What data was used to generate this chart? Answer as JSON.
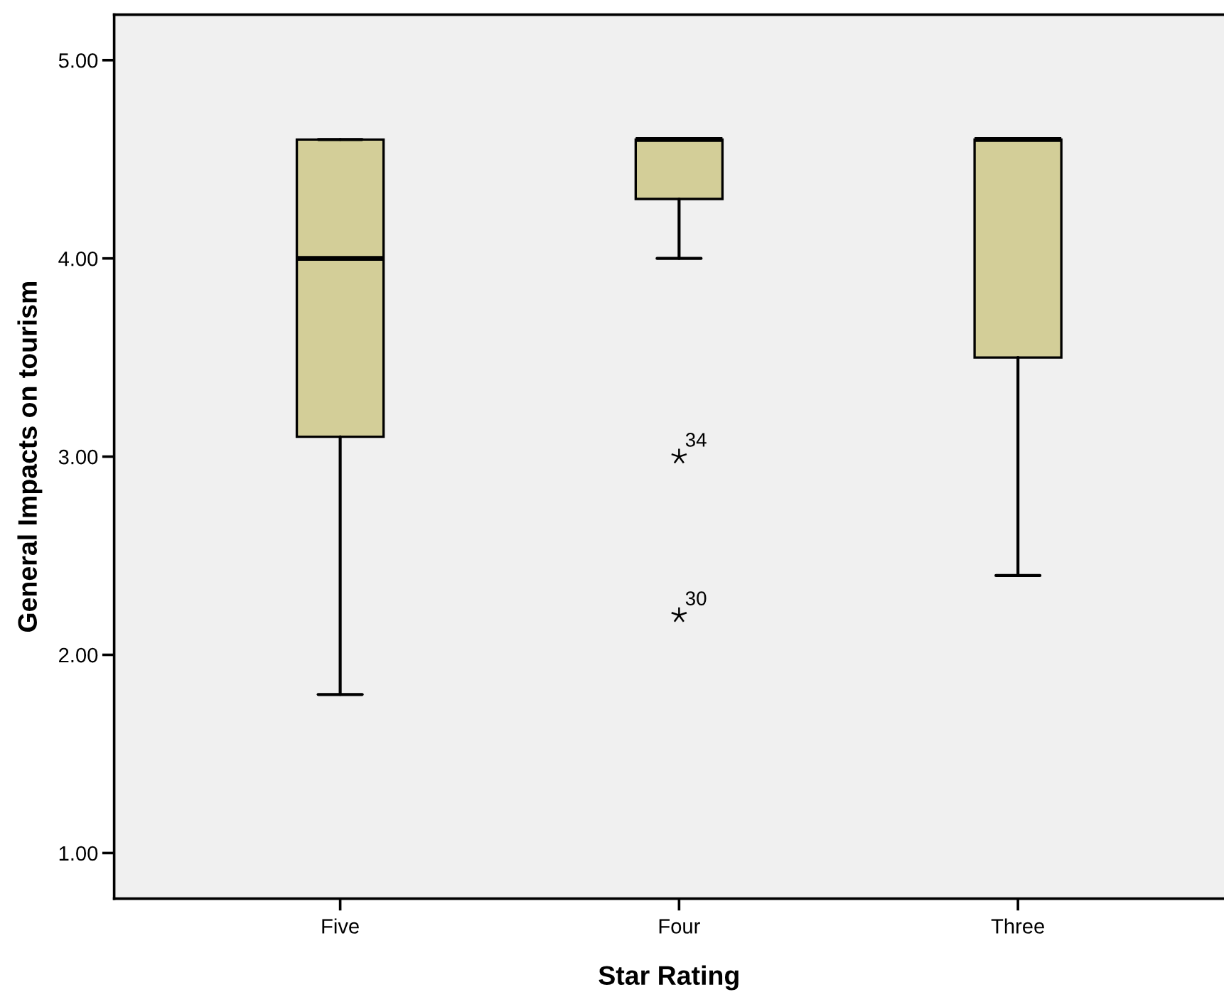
{
  "chart_data": {
    "type": "box",
    "xlabel": "Star Rating",
    "ylabel": "General Impacts on tourism",
    "categories": [
      "Five",
      "Four",
      "Three"
    ],
    "series": [
      {
        "color": "#d3ce98",
        "boxes": [
          {
            "low": 1.8,
            "q1": 3.1,
            "median": 4.0,
            "q3": 4.6,
            "high": 4.6
          },
          {
            "low": 4.0,
            "q1": 4.3,
            "median": 4.6,
            "q3": 4.6,
            "high": 4.6,
            "outliers": [
              3.0,
              2.2
            ]
          },
          {
            "low": 2.4,
            "q1": 3.5,
            "median": 4.6,
            "q3": 4.6,
            "high": 4.6
          }
        ]
      }
    ],
    "ylim": [
      0.77,
      5.23
    ],
    "yticks": [
      {
        "value": 1,
        "label": "1.00"
      },
      {
        "value": 2,
        "label": "2.00"
      },
      {
        "value": 3,
        "label": "3.00"
      },
      {
        "value": 4,
        "label": "4.00"
      },
      {
        "value": 5,
        "label": "5.00"
      }
    ],
    "marker": "star",
    "annotations": [
      "34",
      "30"
    ]
  }
}
